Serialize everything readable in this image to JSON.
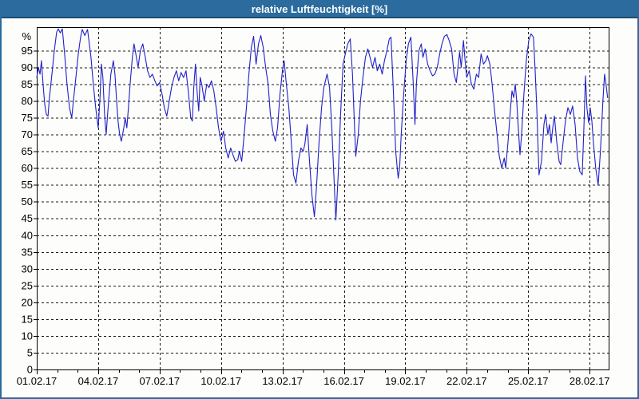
{
  "title": "relative Luftfeuchtigkeit [%]",
  "colors": {
    "titlebar_bg": "#2B6B9D",
    "titlebar_border": "#1D4E74",
    "frame": "#2B6B9D",
    "series_line": "#2020C8",
    "grid": "#1A1A1A",
    "plot_border": "#000000",
    "text": "#000000",
    "background": "#FDFDFC"
  },
  "chart_data": {
    "type": "line",
    "title": "relative Luftfeuchtigkeit [%]",
    "xlabel": "",
    "ylabel": "%",
    "grid": true,
    "legend": "none",
    "xlim": [
      1,
      28.93
    ],
    "ylim": [
      0,
      102
    ],
    "y_ticks": [
      0,
      5,
      10,
      15,
      20,
      25,
      30,
      35,
      40,
      45,
      50,
      55,
      60,
      65,
      70,
      75,
      80,
      85,
      90,
      95
    ],
    "x_tick_days": [
      1,
      4,
      7,
      10,
      13,
      16,
      19,
      22,
      25,
      28
    ],
    "x_tick_labels": [
      "01.02.17",
      "04.02.17",
      "07.02.17",
      "10.02.17",
      "13.02.17",
      "16.02.17",
      "19.02.17",
      "22.02.17",
      "25.02.17",
      "28.02.17"
    ],
    "minor_x_tick_every_days": 1,
    "series": [
      {
        "name": "relative Luftfeuchtigkeit [%]",
        "color": "#2020C8",
        "points": [
          [
            1.0,
            87
          ],
          [
            1.08,
            90
          ],
          [
            1.16,
            88
          ],
          [
            1.23,
            92
          ],
          [
            1.31,
            85
          ],
          [
            1.39,
            79
          ],
          [
            1.47,
            76
          ],
          [
            1.55,
            75.5
          ],
          [
            1.62,
            81
          ],
          [
            1.74,
            88
          ],
          [
            1.86,
            95
          ],
          [
            1.97,
            100.5
          ],
          [
            2.05,
            101.5
          ],
          [
            2.15,
            100.3
          ],
          [
            2.25,
            101.5
          ],
          [
            2.36,
            94
          ],
          [
            2.48,
            85
          ],
          [
            2.6,
            78
          ],
          [
            2.71,
            75
          ],
          [
            2.79,
            80
          ],
          [
            2.91,
            87
          ],
          [
            3.03,
            94
          ],
          [
            3.14,
            99
          ],
          [
            3.22,
            101.3
          ],
          [
            3.35,
            99.5
          ],
          [
            3.48,
            101.3
          ],
          [
            3.65,
            93
          ],
          [
            3.76,
            85
          ],
          [
            3.88,
            78
          ],
          [
            4.0,
            72
          ],
          [
            4.08,
            80
          ],
          [
            4.16,
            91
          ],
          [
            4.23,
            87
          ],
          [
            4.31,
            76
          ],
          [
            4.39,
            70
          ],
          [
            4.47,
            77
          ],
          [
            4.55,
            83
          ],
          [
            4.62,
            88
          ],
          [
            4.74,
            92
          ],
          [
            4.82,
            88
          ],
          [
            4.9,
            80
          ],
          [
            4.97,
            74
          ],
          [
            5.05,
            70
          ],
          [
            5.13,
            68
          ],
          [
            5.25,
            72
          ],
          [
            5.32,
            75
          ],
          [
            5.4,
            72
          ],
          [
            5.48,
            78
          ],
          [
            5.56,
            85
          ],
          [
            5.67,
            93
          ],
          [
            5.75,
            97
          ],
          [
            5.87,
            93
          ],
          [
            5.95,
            90
          ],
          [
            6.06,
            95
          ],
          [
            6.18,
            97
          ],
          [
            6.3,
            93
          ],
          [
            6.41,
            89
          ],
          [
            6.53,
            87
          ],
          [
            6.65,
            88
          ],
          [
            6.77,
            86
          ],
          [
            6.88,
            84.5
          ],
          [
            7.0,
            85.5
          ],
          [
            7.12,
            82
          ],
          [
            7.23,
            78
          ],
          [
            7.35,
            75.5
          ],
          [
            7.47,
            80
          ],
          [
            7.58,
            84
          ],
          [
            7.7,
            87
          ],
          [
            7.82,
            89
          ],
          [
            7.93,
            86
          ],
          [
            8.05,
            88.5
          ],
          [
            8.17,
            87
          ],
          [
            8.29,
            89
          ],
          [
            8.4,
            83
          ],
          [
            8.52,
            75
          ],
          [
            8.6,
            74
          ],
          [
            8.67,
            84
          ],
          [
            8.75,
            91
          ],
          [
            8.83,
            83
          ],
          [
            8.91,
            77
          ],
          [
            8.98,
            87
          ],
          [
            9.06,
            85
          ],
          [
            9.18,
            80
          ],
          [
            9.3,
            85
          ],
          [
            9.41,
            84
          ],
          [
            9.53,
            86
          ],
          [
            9.65,
            83
          ],
          [
            9.76,
            78
          ],
          [
            9.88,
            72
          ],
          [
            10.0,
            68
          ],
          [
            10.12,
            71
          ],
          [
            10.23,
            66
          ],
          [
            10.35,
            63
          ],
          [
            10.47,
            66
          ],
          [
            10.58,
            64
          ],
          [
            10.7,
            62
          ],
          [
            10.82,
            62.5
          ],
          [
            10.9,
            65
          ],
          [
            11.01,
            62
          ],
          [
            11.13,
            70
          ],
          [
            11.24,
            78
          ],
          [
            11.36,
            88
          ],
          [
            11.48,
            96
          ],
          [
            11.59,
            99.3
          ],
          [
            11.71,
            91
          ],
          [
            11.83,
            97
          ],
          [
            11.94,
            99.5
          ],
          [
            12.06,
            96
          ],
          [
            12.18,
            90
          ],
          [
            12.3,
            85
          ],
          [
            12.41,
            76
          ],
          [
            12.53,
            71
          ],
          [
            12.65,
            68
          ],
          [
            12.76,
            72
          ],
          [
            12.88,
            82
          ],
          [
            13.0,
            89
          ],
          [
            13.08,
            92
          ],
          [
            13.19,
            85
          ],
          [
            13.31,
            78
          ],
          [
            13.43,
            68
          ],
          [
            13.54,
            58
          ],
          [
            13.66,
            55.5
          ],
          [
            13.78,
            62
          ],
          [
            13.9,
            66
          ],
          [
            14.01,
            65
          ],
          [
            14.09,
            67
          ],
          [
            14.21,
            73
          ],
          [
            14.32,
            62
          ],
          [
            14.44,
            52
          ],
          [
            14.56,
            45.5
          ],
          [
            14.67,
            55
          ],
          [
            14.79,
            68
          ],
          [
            14.91,
            78
          ],
          [
            15.02,
            84
          ],
          [
            15.18,
            88
          ],
          [
            15.3,
            84
          ],
          [
            15.41,
            72
          ],
          [
            15.53,
            55
          ],
          [
            15.61,
            44.5
          ],
          [
            15.72,
            58
          ],
          [
            15.84,
            76
          ],
          [
            15.96,
            91
          ],
          [
            16.07,
            94
          ],
          [
            16.19,
            97
          ],
          [
            16.31,
            98.5
          ],
          [
            16.42,
            88
          ],
          [
            16.5,
            75
          ],
          [
            16.58,
            63.5
          ],
          [
            16.7,
            70
          ],
          [
            16.81,
            80
          ],
          [
            16.93,
            87
          ],
          [
            17.05,
            93
          ],
          [
            17.17,
            95.5
          ],
          [
            17.28,
            93
          ],
          [
            17.4,
            90
          ],
          [
            17.52,
            93
          ],
          [
            17.63,
            89
          ],
          [
            17.75,
            91
          ],
          [
            17.87,
            88
          ],
          [
            17.98,
            92
          ],
          [
            18.1,
            95
          ],
          [
            18.22,
            98.5
          ],
          [
            18.3,
            99
          ],
          [
            18.41,
            84
          ],
          [
            18.53,
            65
          ],
          [
            18.65,
            57
          ],
          [
            18.72,
            60
          ],
          [
            18.8,
            70
          ],
          [
            18.92,
            82
          ],
          [
            19.04,
            92
          ],
          [
            19.15,
            97
          ],
          [
            19.27,
            99
          ],
          [
            19.39,
            85
          ],
          [
            19.47,
            73
          ],
          [
            19.54,
            85
          ],
          [
            19.66,
            95
          ],
          [
            19.78,
            97
          ],
          [
            19.86,
            93
          ],
          [
            19.97,
            95.5
          ],
          [
            20.09,
            91
          ],
          [
            20.21,
            89
          ],
          [
            20.33,
            87.5
          ],
          [
            20.44,
            88
          ],
          [
            20.56,
            90
          ],
          [
            20.68,
            94
          ],
          [
            20.79,
            97
          ],
          [
            20.91,
            99.3
          ],
          [
            21.03,
            99.8
          ],
          [
            21.14,
            98
          ],
          [
            21.26,
            95.5
          ],
          [
            21.38,
            88
          ],
          [
            21.49,
            85.5
          ],
          [
            21.57,
            90
          ],
          [
            21.65,
            94.5
          ],
          [
            21.73,
            90
          ],
          [
            21.84,
            98
          ],
          [
            21.92,
            92
          ],
          [
            22.0,
            87
          ],
          [
            22.12,
            89
          ],
          [
            22.23,
            85
          ],
          [
            22.35,
            83.5
          ],
          [
            22.47,
            88
          ],
          [
            22.58,
            87
          ],
          [
            22.7,
            94
          ],
          [
            22.82,
            91
          ],
          [
            22.93,
            92
          ],
          [
            23.01,
            93.5
          ],
          [
            23.13,
            91
          ],
          [
            23.24,
            85
          ],
          [
            23.36,
            77
          ],
          [
            23.48,
            70
          ],
          [
            23.59,
            63.5
          ],
          [
            23.71,
            60
          ],
          [
            23.83,
            63
          ],
          [
            23.9,
            60
          ],
          [
            24.02,
            68
          ],
          [
            24.14,
            78
          ],
          [
            24.21,
            83
          ],
          [
            24.29,
            81
          ],
          [
            24.37,
            85
          ],
          [
            24.44,
            80
          ],
          [
            24.52,
            72
          ],
          [
            24.6,
            64
          ],
          [
            24.68,
            70
          ],
          [
            24.79,
            82
          ],
          [
            24.91,
            92
          ],
          [
            25.03,
            98
          ],
          [
            25.14,
            100
          ],
          [
            25.26,
            99
          ],
          [
            25.34,
            89
          ],
          [
            25.42,
            78
          ],
          [
            25.53,
            58
          ],
          [
            25.65,
            62
          ],
          [
            25.77,
            73
          ],
          [
            25.85,
            76
          ],
          [
            25.96,
            70
          ],
          [
            26.04,
            73
          ],
          [
            26.12,
            67.5
          ],
          [
            26.2,
            72
          ],
          [
            26.28,
            75.5
          ],
          [
            26.39,
            68
          ],
          [
            26.51,
            62
          ],
          [
            26.59,
            61
          ],
          [
            26.71,
            68
          ],
          [
            26.82,
            74
          ],
          [
            26.94,
            78
          ],
          [
            27.06,
            76
          ],
          [
            27.17,
            78.5
          ],
          [
            27.29,
            73
          ],
          [
            27.41,
            63
          ],
          [
            27.52,
            59
          ],
          [
            27.64,
            58
          ],
          [
            27.72,
            72
          ],
          [
            27.8,
            87.5
          ],
          [
            27.87,
            78
          ],
          [
            27.95,
            73.5
          ],
          [
            28.03,
            78
          ],
          [
            28.11,
            74
          ],
          [
            28.18,
            68
          ],
          [
            28.3,
            60
          ],
          [
            28.42,
            55
          ],
          [
            28.53,
            65
          ],
          [
            28.65,
            80
          ],
          [
            28.73,
            88
          ],
          [
            28.8,
            85
          ],
          [
            28.88,
            81
          ]
        ]
      }
    ]
  }
}
